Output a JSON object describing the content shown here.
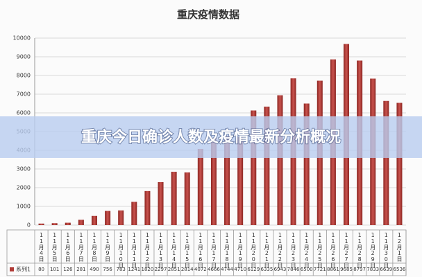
{
  "chart_data": {
    "type": "bar",
    "title": "重庆疫情数据",
    "categories": [
      "11月4日",
      "11月5日",
      "11月6日",
      "11月7日",
      "11月8日",
      "11月9日",
      "11月10日",
      "11月11日",
      "11月12日",
      "11月13日",
      "11月14日",
      "11月15日",
      "11月16日",
      "11月17日",
      "11月18日",
      "11月19日",
      "11月20日",
      "11月21日",
      "11月22日",
      "11月23日",
      "11月24日",
      "11月25日",
      "11月26日",
      "11月27日",
      "11月28日",
      "11月29日",
      "11月30日",
      "12月1日"
    ],
    "series": [
      {
        "name": "系列1",
        "color": "#b03a36",
        "values": [
          80,
          101,
          126,
          281,
          490,
          756,
          783,
          1241,
          1820,
          2297,
          2851,
          2814,
          4072,
          4666,
          4744,
          4710,
          6129,
          6335,
          6943,
          7846,
          6500,
          7721,
          8861,
          9685,
          8797,
          7833,
          6639,
          6536
        ]
      }
    ],
    "ylim": [
      0,
      10000
    ],
    "yticks": [
      0,
      1000,
      2000,
      3000,
      4000,
      5000,
      6000,
      7000,
      8000,
      9000,
      10000
    ],
    "grid": true
  },
  "banner": {
    "title": "重庆今日确诊人数及疫情最新分析概况"
  }
}
